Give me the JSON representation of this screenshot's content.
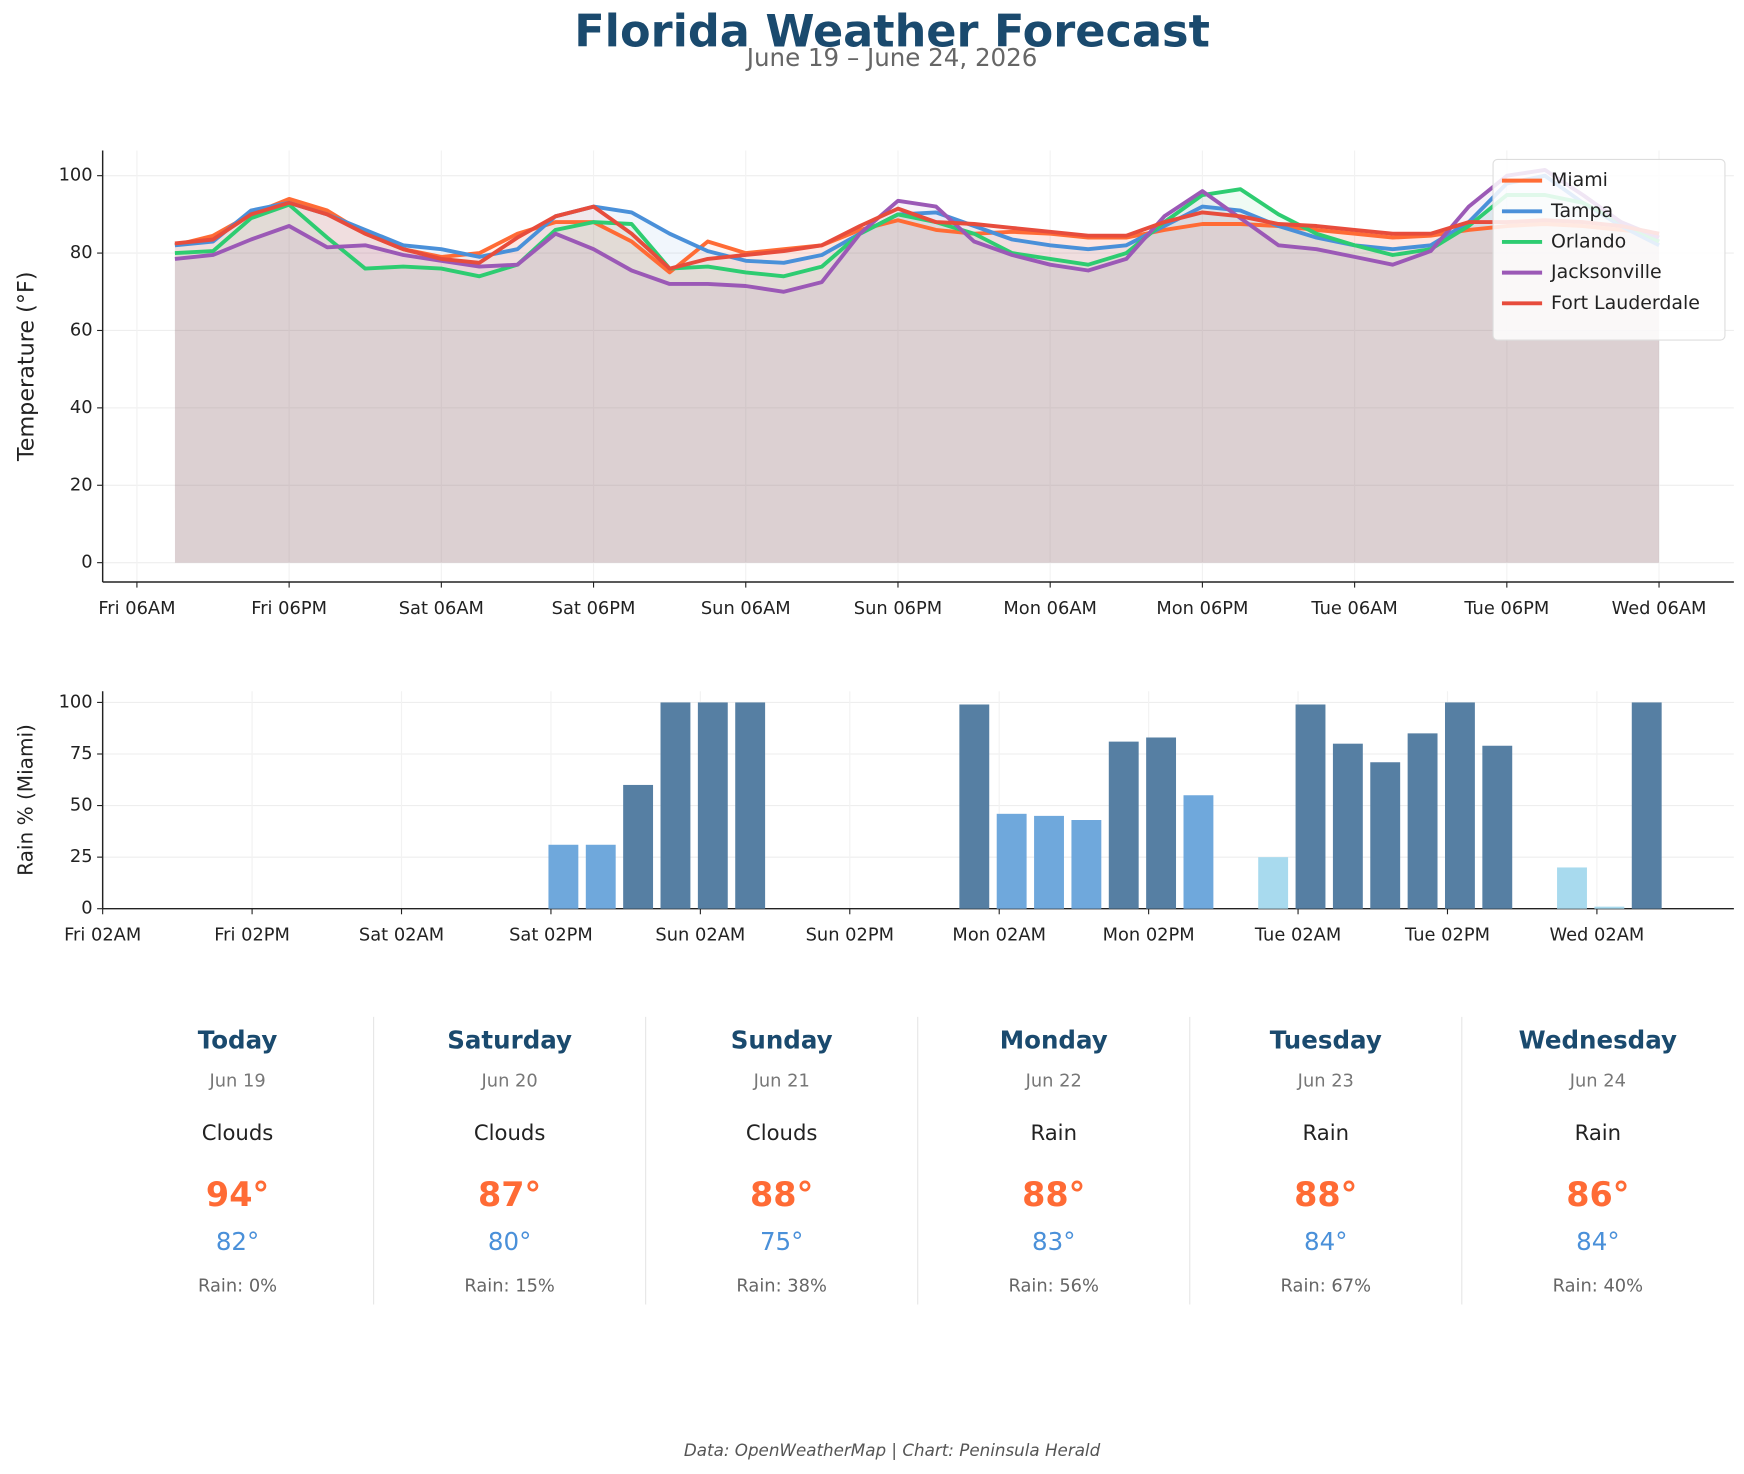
{
  "title": "Florida Weather Forecast",
  "subtitle": "June 19 – June 24, 2026",
  "footer": "Data: OpenWeatherMap | Chart: Peninsula Herald",
  "chart_data": [
    {
      "type": "line",
      "y_label": "Temperature (°F)",
      "x": [
        9,
        12,
        15,
        18,
        21,
        24,
        27,
        30,
        33,
        36,
        39,
        42,
        45,
        48,
        51,
        54,
        57,
        60,
        63,
        66,
        69,
        72,
        75,
        78,
        81,
        84,
        87,
        90,
        93,
        96,
        99,
        102,
        105,
        108,
        111,
        114,
        117,
        120,
        123,
        126
      ],
      "xlim": [
        3.3,
        131.9
      ],
      "xticks": [
        {
          "value": 6,
          "label": "Fri 06AM"
        },
        {
          "value": 18,
          "label": "Fri 06PM"
        },
        {
          "value": 30,
          "label": "Sat 06AM"
        },
        {
          "value": 42,
          "label": "Sat 06PM"
        },
        {
          "value": 54,
          "label": "Sun 06AM"
        },
        {
          "value": 66,
          "label": "Sun 06PM"
        },
        {
          "value": 78,
          "label": "Mon 06AM"
        },
        {
          "value": 90,
          "label": "Mon 06PM"
        },
        {
          "value": 102,
          "label": "Tue 06AM"
        },
        {
          "value": 114,
          "label": "Tue 06PM"
        },
        {
          "value": 126,
          "label": "Wed 06AM"
        }
      ],
      "ylim": [
        -5,
        106.5
      ],
      "yticks": [
        0,
        20,
        40,
        60,
        80,
        100
      ],
      "grid": true,
      "legend": "upper-right",
      "series": [
        {
          "name": "Miami",
          "color": "#ff6b35",
          "values": [
            82,
            84.5,
            90,
            94,
            91,
            85,
            81,
            79,
            80,
            85,
            88,
            88,
            83,
            75,
            83,
            80,
            81,
            82,
            86,
            88.5,
            86,
            85,
            85.5,
            85,
            84,
            84,
            86,
            87.5,
            87.5,
            87,
            86,
            85,
            84,
            84.5,
            86,
            87,
            87.5,
            87,
            86,
            85
          ]
        },
        {
          "name": "Tampa",
          "color": "#4a90d9",
          "values": [
            82,
            83,
            91,
            93,
            90,
            86,
            82,
            81,
            79,
            81,
            89.5,
            92,
            90.5,
            85,
            80.5,
            78,
            77.5,
            79.5,
            85,
            90,
            90.5,
            87,
            83.5,
            82,
            81,
            82,
            87,
            92,
            91,
            87,
            84,
            82,
            81,
            82,
            88,
            98,
            100,
            93,
            87,
            82
          ]
        },
        {
          "name": "Orlando",
          "color": "#2ecc71",
          "values": [
            80,
            80.5,
            89,
            92.5,
            84,
            76,
            76.5,
            76,
            74,
            77,
            86,
            88,
            87.5,
            76,
            76.5,
            75,
            74,
            76.5,
            85,
            90,
            88,
            85,
            80,
            78.5,
            77,
            80,
            88,
            95,
            96.5,
            90,
            85,
            82,
            79.5,
            81,
            87,
            95,
            95,
            93,
            88,
            83
          ]
        },
        {
          "name": "Jacksonville",
          "color": "#9b59b6",
          "values": [
            78.5,
            79.5,
            83.5,
            87,
            81.5,
            82,
            79.5,
            78,
            76.5,
            77,
            85,
            81,
            75.5,
            72,
            72,
            71.5,
            70,
            72.5,
            85,
            93.5,
            92,
            83,
            79.5,
            77,
            75.5,
            78.5,
            89.5,
            96,
            89,
            82,
            81,
            79,
            77,
            80.5,
            92,
            100,
            101.5,
            95,
            88,
            84
          ]
        },
        {
          "name": "Fort Lauderdale",
          "color": "#e74c3c",
          "values": [
            82.5,
            83.5,
            90,
            93,
            90,
            85,
            81,
            78.5,
            77.5,
            84,
            89.5,
            92,
            85,
            76,
            78.5,
            79.5,
            80.5,
            82,
            87,
            91.5,
            88,
            87.5,
            86.5,
            85.5,
            84.5,
            84.5,
            88,
            90.5,
            89.5,
            87.5,
            87,
            86,
            85,
            85,
            88,
            88,
            88.5,
            88,
            87,
            85
          ]
        }
      ]
    },
    {
      "type": "bar",
      "y_label": "Rain % (Miami)",
      "x": [
        9,
        12,
        15,
        18,
        21,
        24,
        27,
        30,
        33,
        36,
        39,
        42,
        45,
        48,
        51,
        54,
        57,
        60,
        63,
        66,
        69,
        72,
        75,
        78,
        81,
        84,
        87,
        90,
        93,
        96,
        99,
        102,
        105,
        108,
        111,
        114,
        117,
        120,
        123,
        126
      ],
      "values": [
        0,
        0,
        0,
        0,
        0,
        0,
        0,
        0,
        0,
        0,
        31,
        31,
        60,
        100,
        100,
        100,
        0,
        0,
        0,
        0,
        0,
        99,
        46,
        45,
        43,
        81,
        83,
        55,
        0,
        25,
        99,
        80,
        71,
        85,
        100,
        79,
        0,
        20,
        1,
        100
      ],
      "colors": [
        "#a8daee",
        "#a8daee",
        "#a8daee",
        "#a8daee",
        "#a8daee",
        "#a8daee",
        "#a8daee",
        "#a8daee",
        "#a8daee",
        "#a8daee",
        "#6fa8dc",
        "#6fa8dc",
        "#567fa3",
        "#567fa3",
        "#567fa3",
        "#567fa3",
        "#a8daee",
        "#a8daee",
        "#a8daee",
        "#a8daee",
        "#a8daee",
        "#567fa3",
        "#6fa8dc",
        "#6fa8dc",
        "#6fa8dc",
        "#567fa3",
        "#567fa3",
        "#6fa8dc",
        "#a8daee",
        "#a8daee",
        "#567fa3",
        "#567fa3",
        "#567fa3",
        "#567fa3",
        "#567fa3",
        "#567fa3",
        "#a8daee",
        "#a8daee",
        "#a8daee",
        "#567fa3"
      ],
      "xlim": [
        2,
        133
      ],
      "xticks": [
        {
          "value": 2,
          "label": "Fri 02AM"
        },
        {
          "value": 14,
          "label": "Fri 02PM"
        },
        {
          "value": 26,
          "label": "Sat 02AM"
        },
        {
          "value": 38,
          "label": "Sat 02PM"
        },
        {
          "value": 50,
          "label": "Sun 02AM"
        },
        {
          "value": 62,
          "label": "Sun 02PM"
        },
        {
          "value": 74,
          "label": "Mon 02AM"
        },
        {
          "value": 86,
          "label": "Mon 02PM"
        },
        {
          "value": 98,
          "label": "Tue 02AM"
        },
        {
          "value": 110,
          "label": "Tue 02PM"
        },
        {
          "value": 122,
          "label": "Wed 02AM"
        }
      ],
      "ylim": [
        0,
        105.4
      ],
      "yticks": [
        0,
        25,
        50,
        75,
        100
      ],
      "grid": true
    }
  ],
  "forecast": [
    {
      "day": "Today",
      "date": "Jun 19",
      "condition": "Clouds",
      "high": "94°",
      "low": "82°",
      "rain": "Rain: 0%"
    },
    {
      "day": "Saturday",
      "date": "Jun 20",
      "condition": "Clouds",
      "high": "87°",
      "low": "80°",
      "rain": "Rain: 15%"
    },
    {
      "day": "Sunday",
      "date": "Jun 21",
      "condition": "Clouds",
      "high": "88°",
      "low": "75°",
      "rain": "Rain: 38%"
    },
    {
      "day": "Monday",
      "date": "Jun 22",
      "condition": "Rain",
      "high": "88°",
      "low": "83°",
      "rain": "Rain: 56%"
    },
    {
      "day": "Tuesday",
      "date": "Jun 23",
      "condition": "Rain",
      "high": "88°",
      "low": "84°",
      "rain": "Rain: 67%"
    },
    {
      "day": "Wednesday",
      "date": "Jun 24",
      "condition": "Rain",
      "high": "86°",
      "low": "84°",
      "rain": "Rain: 40%"
    }
  ]
}
